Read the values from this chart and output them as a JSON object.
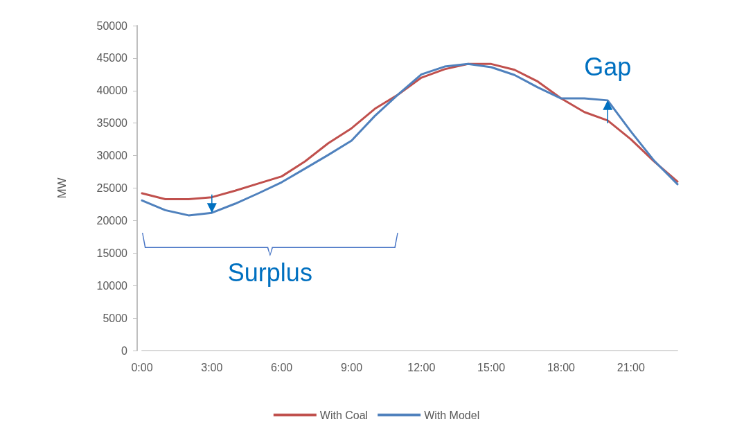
{
  "chart_data": {
    "type": "line",
    "ylabel": "MW",
    "categories": [
      "0:00",
      null,
      null,
      "3:00",
      null,
      null,
      "6:00",
      null,
      null,
      "9:00",
      null,
      null,
      "12:00",
      null,
      null,
      "15:00",
      null,
      null,
      "18:00",
      null,
      null,
      "21:00",
      null,
      null
    ],
    "series": [
      {
        "name": "With Coal",
        "color": "#c0504d",
        "values": [
          24200,
          23300,
          23300,
          23600,
          24600,
          25700,
          26800,
          29100,
          31900,
          34200,
          37200,
          39400,
          42000,
          43300,
          44100,
          44100,
          43200,
          41400,
          38800,
          36700,
          35400,
          32500,
          29100,
          26000
        ]
      },
      {
        "name": "With Model",
        "color": "#4f81bd",
        "values": [
          23100,
          21600,
          20800,
          21200,
          22600,
          24200,
          25900,
          28000,
          30100,
          32300,
          36100,
          39400,
          42500,
          43700,
          44100,
          43600,
          42400,
          40500,
          38800,
          38800,
          38500,
          33700,
          29200,
          25600
        ]
      }
    ],
    "ylim": [
      0,
      50000
    ],
    "yticks": [
      0,
      5000,
      10000,
      15000,
      20000,
      25000,
      30000,
      35000,
      40000,
      45000,
      50000
    ],
    "legend": "bottom",
    "marker": "none",
    "line_style": "solid",
    "annotations": [
      "Surplus",
      "Gap"
    ]
  }
}
